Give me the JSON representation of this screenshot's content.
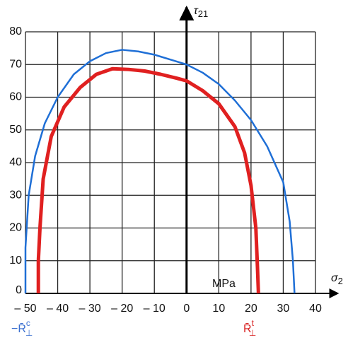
{
  "chart_data": {
    "type": "line",
    "y_label": {
      "symbol": "τ",
      "sub": "21"
    },
    "x_label": {
      "symbol": "σ",
      "sub": "2"
    },
    "unit_label": "MPa",
    "annotations": [
      {
        "text": "−R̄",
        "sub": "⊥",
        "sup": "c",
        "color": "#3a6fd0",
        "x": -50
      },
      {
        "text": "R̄",
        "sub": "⊥",
        "sup": "t",
        "color": "#d82020",
        "x": 22
      }
    ],
    "xlim": [
      -50,
      40
    ],
    "ylim": [
      0,
      80
    ],
    "xticks": [
      {
        "value": -50,
        "label": "– 50"
      },
      {
        "value": -40,
        "label": "– 40"
      },
      {
        "value": -30,
        "label": "– 30"
      },
      {
        "value": -20,
        "label": "– 20"
      },
      {
        "value": -10,
        "label": "– 10"
      },
      0,
      10,
      20,
      30,
      40
    ],
    "yticks": [
      0,
      10,
      20,
      30,
      40,
      50,
      60,
      70,
      80
    ],
    "grid": true,
    "series": [
      {
        "color": "#1f6fd6",
        "width": 2.5,
        "x": [
          -50,
          -50,
          -49,
          -47,
          -44,
          -40,
          -35,
          -30,
          -25,
          -20,
          -15,
          -10,
          -5,
          0,
          5,
          10,
          15,
          20,
          25,
          30,
          32,
          33,
          33.5
        ],
        "values": [
          0,
          14,
          30,
          42,
          52,
          60,
          67,
          71,
          73.5,
          74.5,
          74,
          73,
          71.5,
          70,
          67.5,
          64,
          59,
          53,
          45,
          34,
          22,
          10,
          0
        ]
      },
      {
        "color": "#e02020",
        "width": 5,
        "x": [
          -46,
          -46,
          -45.5,
          -44.5,
          -42,
          -38,
          -33,
          -28,
          -23,
          -18,
          -13,
          -8,
          -3,
          0,
          5,
          10,
          15,
          18,
          20,
          21.5,
          22,
          22.3
        ],
        "values": [
          0,
          10,
          20,
          35,
          48,
          57,
          63,
          67,
          68.7,
          68.5,
          68,
          67,
          65.8,
          65,
          62,
          58,
          51,
          43,
          33,
          20,
          8,
          0
        ]
      }
    ]
  }
}
